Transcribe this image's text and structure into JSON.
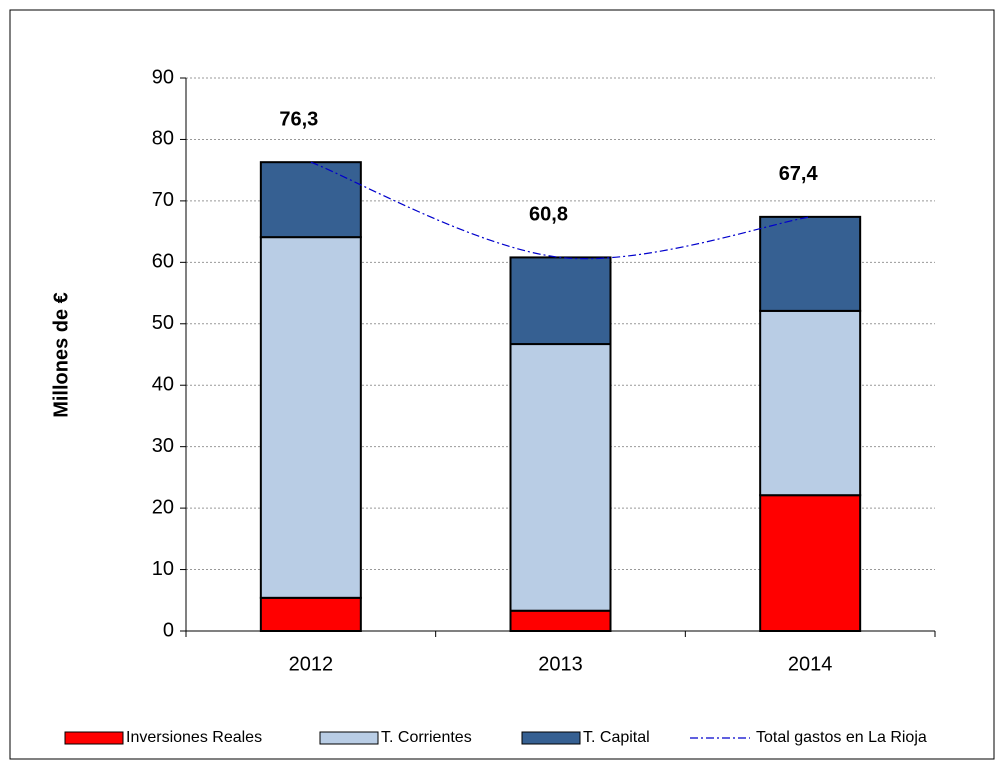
{
  "chart_data": {
    "type": "bar",
    "stacked": true,
    "y_label": "Millones de €",
    "categories": [
      "2012",
      "2013",
      "2014"
    ],
    "series": [
      {
        "name": "Inversiones Reales",
        "color": "#ff0000",
        "values": [
          5.4,
          3.3,
          22.1
        ]
      },
      {
        "name": "T. Corrientes",
        "color": "#b9cde5",
        "values": [
          58.7,
          43.4,
          30.0
        ]
      },
      {
        "name": "T. Capital",
        "color": "#366092",
        "values": [
          12.2,
          14.1,
          15.3
        ]
      },
      {
        "name": "Total gastos en La Rioja",
        "type": "line",
        "color": "#0000cc",
        "values": [
          76.3,
          60.8,
          67.4
        ],
        "value_labels": [
          "76,3",
          "60,8",
          "67,4"
        ]
      }
    ],
    "ylim": [
      0,
      90
    ],
    "yticks": [
      0,
      10,
      20,
      30,
      40,
      50,
      60,
      70,
      80,
      90
    ],
    "grid": true,
    "legend": "bottom"
  }
}
